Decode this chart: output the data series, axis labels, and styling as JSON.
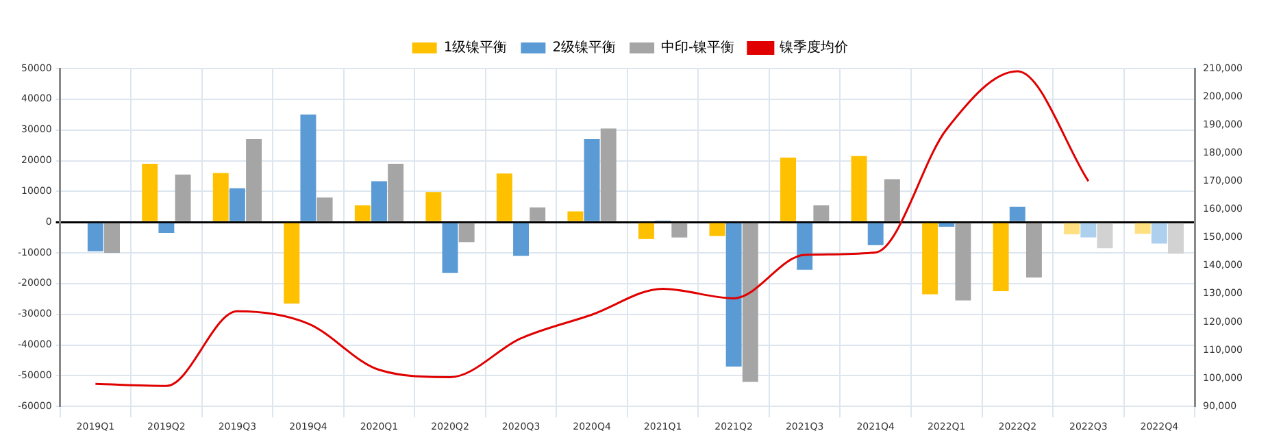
{
  "chart_data": {
    "type": "bar",
    "categories": [
      "2019Q1",
      "2019Q2",
      "2019Q3",
      "2019Q4",
      "2020Q1",
      "2020Q2",
      "2020Q3",
      "2020Q4",
      "2021Q1",
      "2021Q2",
      "2021Q3",
      "2021Q4",
      "2022Q1",
      "2022Q2",
      "2022Q3",
      "2022Q4"
    ],
    "series": [
      {
        "name": "1级镍平衡",
        "color": "#ffc000",
        "colors": [
          "#ffc000",
          "#ffc000",
          "#ffc000",
          "#ffc000",
          "#ffc000",
          "#ffc000",
          "#ffc000",
          "#ffc000",
          "#ffc000",
          "#ffc000",
          "#ffc000",
          "#ffc000",
          "#ffc000",
          "#ffc000",
          "#ffe080",
          "#ffe080"
        ],
        "values": [
          null,
          19000,
          16000,
          -26500,
          5500,
          9800,
          15800,
          3500,
          -5500,
          -4500,
          21000,
          21500,
          -23500,
          -22500,
          -4000,
          -3800
        ]
      },
      {
        "name": "2级镍平衡",
        "color": "#5b9bd5",
        "colors": [
          "#5b9bd5",
          "#5b9bd5",
          "#5b9bd5",
          "#5b9bd5",
          "#5b9bd5",
          "#5b9bd5",
          "#5b9bd5",
          "#5b9bd5",
          "#5b9bd5",
          "#5b9bd5",
          "#5b9bd5",
          "#5b9bd5",
          "#5b9bd5",
          "#5b9bd5",
          "#add0ee",
          "#add0ee"
        ],
        "values": [
          -9500,
          -3500,
          11000,
          35000,
          13300,
          -16500,
          -11000,
          27000,
          500,
          -47000,
          -15500,
          -7500,
          -1500,
          5000,
          -5000,
          -7000
        ]
      },
      {
        "name": "中印-镍平衡",
        "color": "#a5a5a5",
        "colors": [
          "#a5a5a5",
          "#a5a5a5",
          "#a5a5a5",
          "#a5a5a5",
          "#a5a5a5",
          "#a5a5a5",
          "#a5a5a5",
          "#a5a5a5",
          "#a5a5a5",
          "#a5a5a5",
          "#a5a5a5",
          "#a5a5a5",
          "#a5a5a5",
          "#a5a5a5",
          "#d2d2d2",
          "#d2d2d2"
        ],
        "values": [
          -10000,
          15500,
          27000,
          8000,
          19000,
          -6500,
          4800,
          30500,
          -5000,
          -52000,
          5500,
          14000,
          -25500,
          -18000,
          -8500,
          -10300
        ]
      },
      {
        "name": "镍季度均价",
        "type": "line",
        "axis": "y2",
        "color": "#e00000",
        "values": [
          98000,
          97300,
          123800,
          119400,
          103000,
          100400,
          114200,
          122600,
          131800,
          128400,
          143800,
          144700,
          188400,
          209000,
          170000,
          null
        ]
      }
    ],
    "ylim": [
      -60000,
      50000
    ],
    "yticks": [
      -60000,
      -50000,
      -40000,
      -30000,
      -20000,
      -10000,
      0,
      10000,
      20000,
      30000,
      40000,
      50000
    ],
    "y2lim": [
      90000,
      210000
    ],
    "y2ticks": [
      {
        "value": 90000,
        "label": "90,000"
      },
      {
        "value": 100000,
        "label": "100,000"
      },
      {
        "value": 110000,
        "label": "110,000"
      },
      {
        "value": 120000,
        "label": "120,000"
      },
      {
        "value": 130000,
        "label": "130,000"
      },
      {
        "value": 140000,
        "label": "140,000"
      },
      {
        "value": 150000,
        "label": "150,000"
      },
      {
        "value": 160000,
        "label": "160,000"
      },
      {
        "value": 170000,
        "label": "170,000"
      },
      {
        "value": 180000,
        "label": "180,000"
      },
      {
        "value": 190000,
        "label": "190,000"
      },
      {
        "value": 200000,
        "label": "200,000"
      },
      {
        "value": 210000,
        "label": "210,000"
      }
    ],
    "grid": true,
    "legend": "top",
    "line_style": "solid",
    "marker": "none"
  }
}
